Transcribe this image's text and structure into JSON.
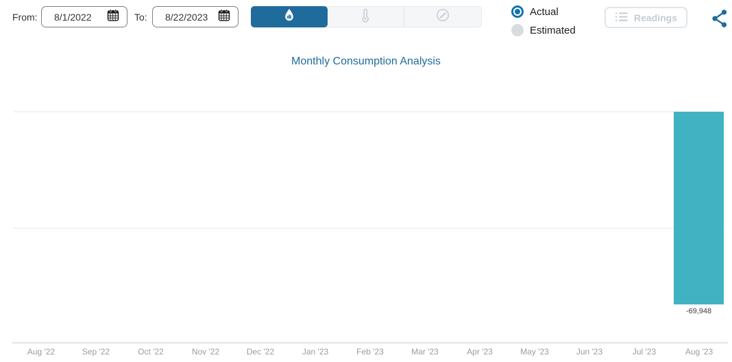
{
  "header": {
    "from_label": "From:",
    "from_date": "8/1/2022",
    "to_label": "To:",
    "to_date": "8/22/2023",
    "tabs": [
      {
        "id": "water",
        "icon": "water-drop-chart-icon",
        "selected": true
      },
      {
        "id": "temperature",
        "icon": "thermometer-icon",
        "selected": false
      },
      {
        "id": "flow",
        "icon": "gauge-icon",
        "selected": false
      }
    ],
    "radios": [
      {
        "label": "Actual",
        "selected": true
      },
      {
        "label": "Estimated",
        "selected": false
      }
    ],
    "readings_button": "Readings"
  },
  "chart_data": {
    "type": "bar",
    "title": "Monthly Consumption Analysis",
    "categories": [
      "Aug '22",
      "Sep '22",
      "Oct '22",
      "Nov '22",
      "Dec '22",
      "Jan '23",
      "Feb '23",
      "Mar '23",
      "Apr '23",
      "May '23",
      "Jun '23",
      "Jul '23",
      "Aug '23"
    ],
    "values": [
      null,
      null,
      null,
      null,
      null,
      null,
      null,
      null,
      null,
      null,
      null,
      null,
      -69948
    ],
    "data_label": "-69,948",
    "xlabel": "",
    "ylabel": "",
    "y_axis_labels_visible": false,
    "zero_line": "top-of-plot",
    "ylim_estimate": [
      -84000,
      0
    ],
    "grid": "horizontal",
    "legend": "none"
  },
  "colors": {
    "accent_blue": "#1f6b9c",
    "radio_blue": "#1173b2",
    "bar_teal": "#41b2c2",
    "disabled_gray": "#c4ccd4",
    "axis_label_gray": "#9b9b9b",
    "gridline_gray": "#f1f2f2"
  }
}
